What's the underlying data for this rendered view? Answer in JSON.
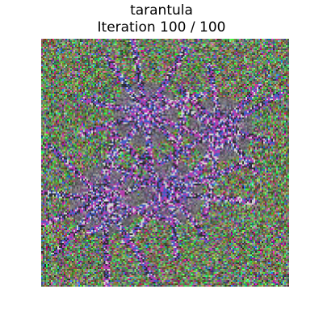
{
  "figure": {
    "class_label": "tarantula",
    "iteration_text": "Iteration 100 / 100"
  },
  "image": {
    "description_icon": "class-visualization-noise-image",
    "dominant_colors": [
      "#8a8a6a",
      "#3fbf3f",
      "#c03fa0",
      "#3f5fcf",
      "#e0e0e0"
    ]
  }
}
